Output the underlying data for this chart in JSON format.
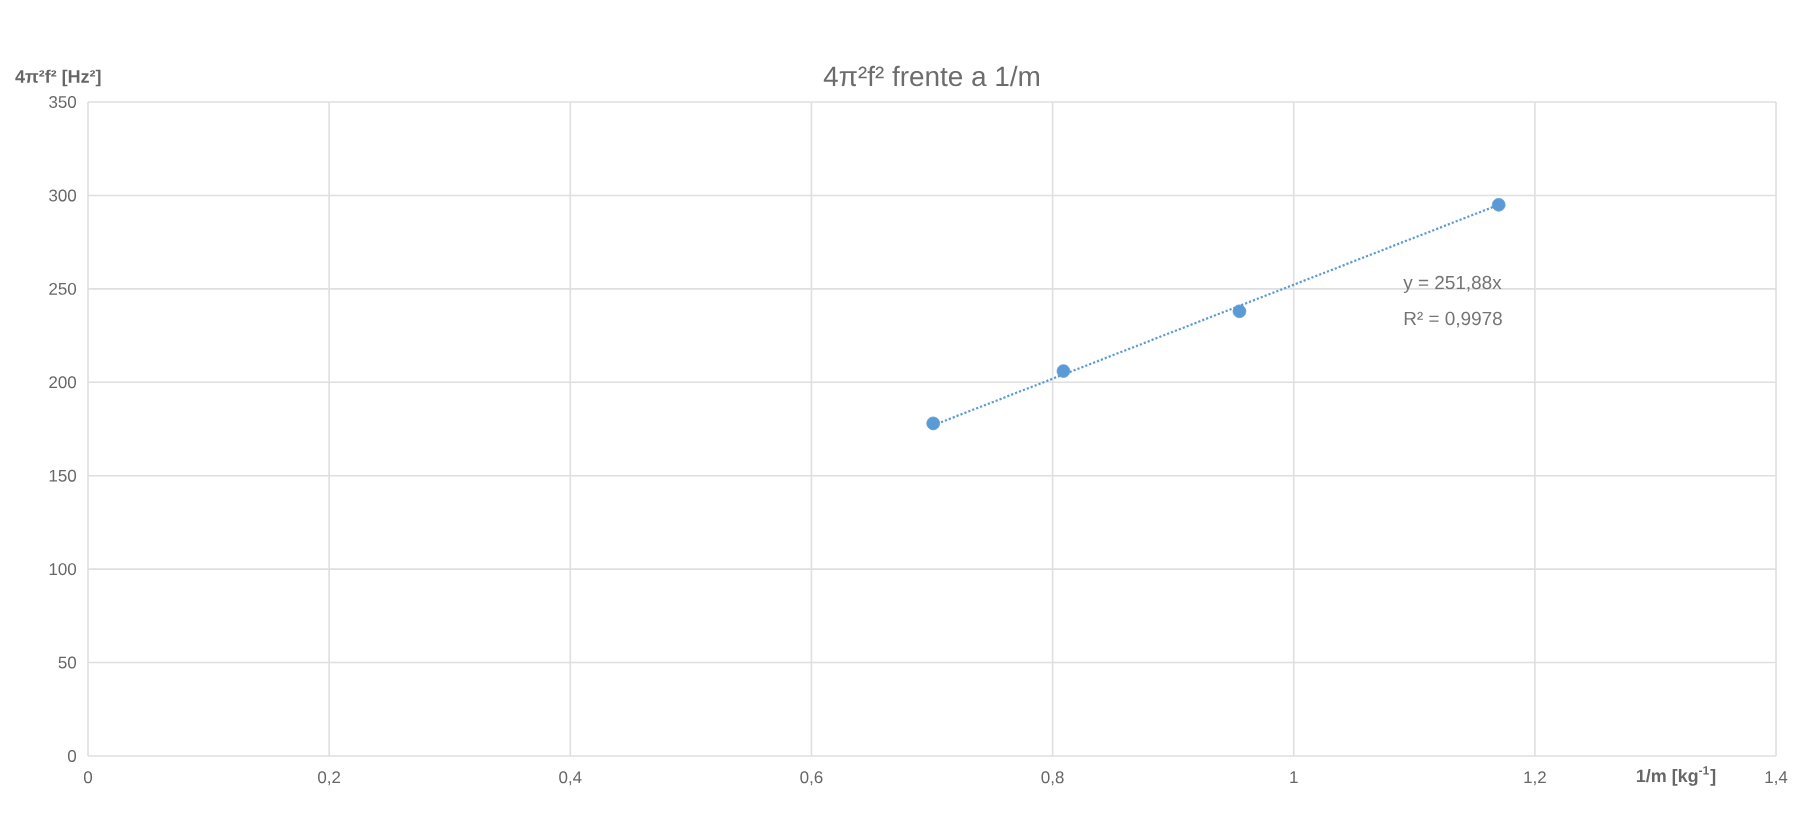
{
  "chart_data": {
    "type": "scatter",
    "title": "4π²f² frente a 1/m",
    "xlabel": "1/m [kg$^{-1}$]",
    "ylabel": "4π²f² [Hz²]",
    "xlim": [
      0,
      1.4
    ],
    "ylim": [
      0,
      350
    ],
    "xticks": [
      0,
      {
        "value": 0.2,
        "label": "0,2"
      },
      {
        "value": 0.4,
        "label": "0,4"
      },
      {
        "value": 0.6,
        "label": "0,6"
      },
      {
        "value": 0.8,
        "label": "0,8"
      },
      1,
      {
        "value": 1.2,
        "label": "1,2"
      },
      {
        "value": 1.4,
        "label": "1,4"
      }
    ],
    "yticks": [
      0,
      50,
      100,
      150,
      200,
      250,
      300,
      350
    ],
    "grid": true,
    "series": [
      {
        "color": "#5b9bd5",
        "marker": "circle",
        "x": [
          0.701,
          0.809,
          0.955,
          1.17
        ],
        "values": [
          178,
          206,
          238,
          295
        ]
      },
      {
        "type": "line",
        "color": "#5b9bd5",
        "marker": "none",
        "line_style": "dotted",
        "x": [
          0.701,
          1.17
        ],
        "values": [
          177,
          295
        ]
      }
    ],
    "annotations": [
      "y = 251,88x",
      "R² = 0,9978"
    ]
  }
}
